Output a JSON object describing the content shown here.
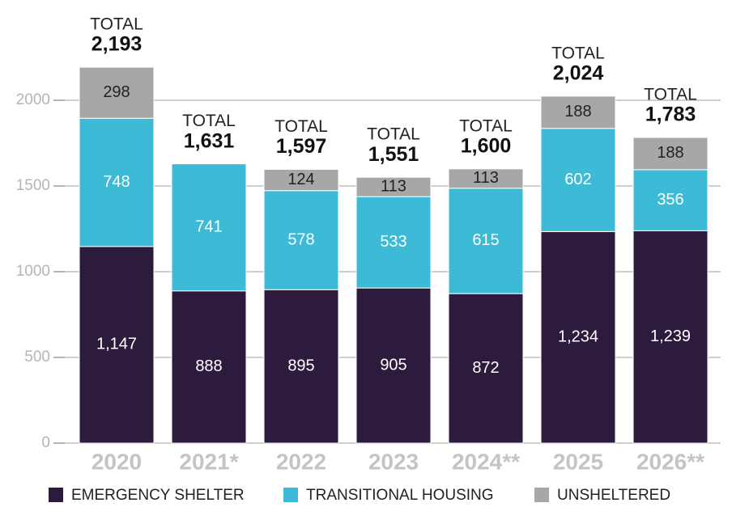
{
  "chart_data": {
    "type": "stacked_bar",
    "categories": [
      "2020",
      "2021*",
      "2022",
      "2023",
      "2024**",
      "2025",
      "2026**"
    ],
    "series": [
      {
        "name": "EMERGENCY SHELTER",
        "color": "#2d1b3e",
        "values": [
          1147,
          888,
          895,
          905,
          872,
          1234,
          1239
        ],
        "value_labels": [
          "1,147",
          "888",
          "895",
          "905",
          "872",
          "1,234",
          "1,239"
        ]
      },
      {
        "name": "TRANSITIONAL HOUSING",
        "color": "#3dbbd6",
        "values": [
          748,
          741,
          578,
          533,
          615,
          602,
          356
        ]
      },
      {
        "name": "UNSHELTERED",
        "color": "#a7a7a7",
        "values": [
          298,
          null,
          124,
          113,
          113,
          188,
          188
        ]
      }
    ],
    "total_label": "TOTAL",
    "totals": [
      2193,
      1631,
      1597,
      1551,
      1600,
      2024,
      1783
    ],
    "total_value_labels": [
      "2,193",
      "1,631",
      "1,597",
      "1,551",
      "1,600",
      "2,024",
      "1,783"
    ],
    "ylim": [
      0,
      2500
    ],
    "yticks": [
      0,
      500,
      1000,
      1500,
      2000
    ],
    "grid": true,
    "legend": "bottom"
  }
}
